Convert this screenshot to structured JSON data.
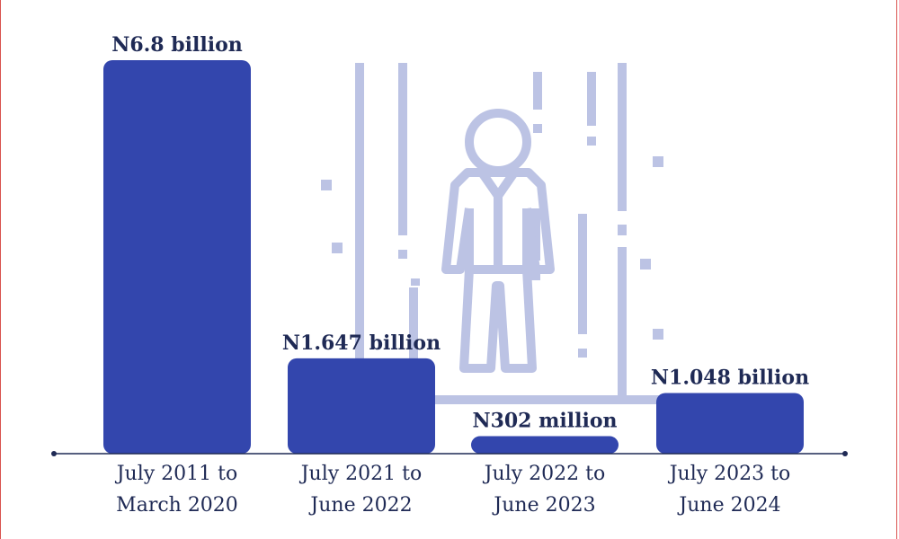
{
  "chart_data": {
    "type": "bar",
    "title": "",
    "xlabel": "",
    "ylabel": "",
    "unit": "billion naira",
    "categories": [
      [
        "July 2011 to",
        "March 2020"
      ],
      [
        "July 2021 to",
        "June 2022"
      ],
      [
        "July 2022 to",
        "June 2023"
      ],
      [
        "July 2023 to",
        "June 2024"
      ]
    ],
    "values": [
      6.8,
      1.647,
      0.302,
      1.048
    ],
    "data_labels": [
      "N6.8 billion",
      "N1.647 billion",
      "N302 million",
      "N1.048 billion"
    ],
    "ylim": [
      0,
      6.8
    ],
    "grid": false,
    "legend": "none"
  },
  "colors": {
    "bar": "#3346ad",
    "axis": "#1f2a55",
    "text": "#1f2a55",
    "illustration": "#bcc3e4",
    "frame": "#d9534f"
  },
  "illustration": {
    "icon": "person-in-rain-icon"
  }
}
